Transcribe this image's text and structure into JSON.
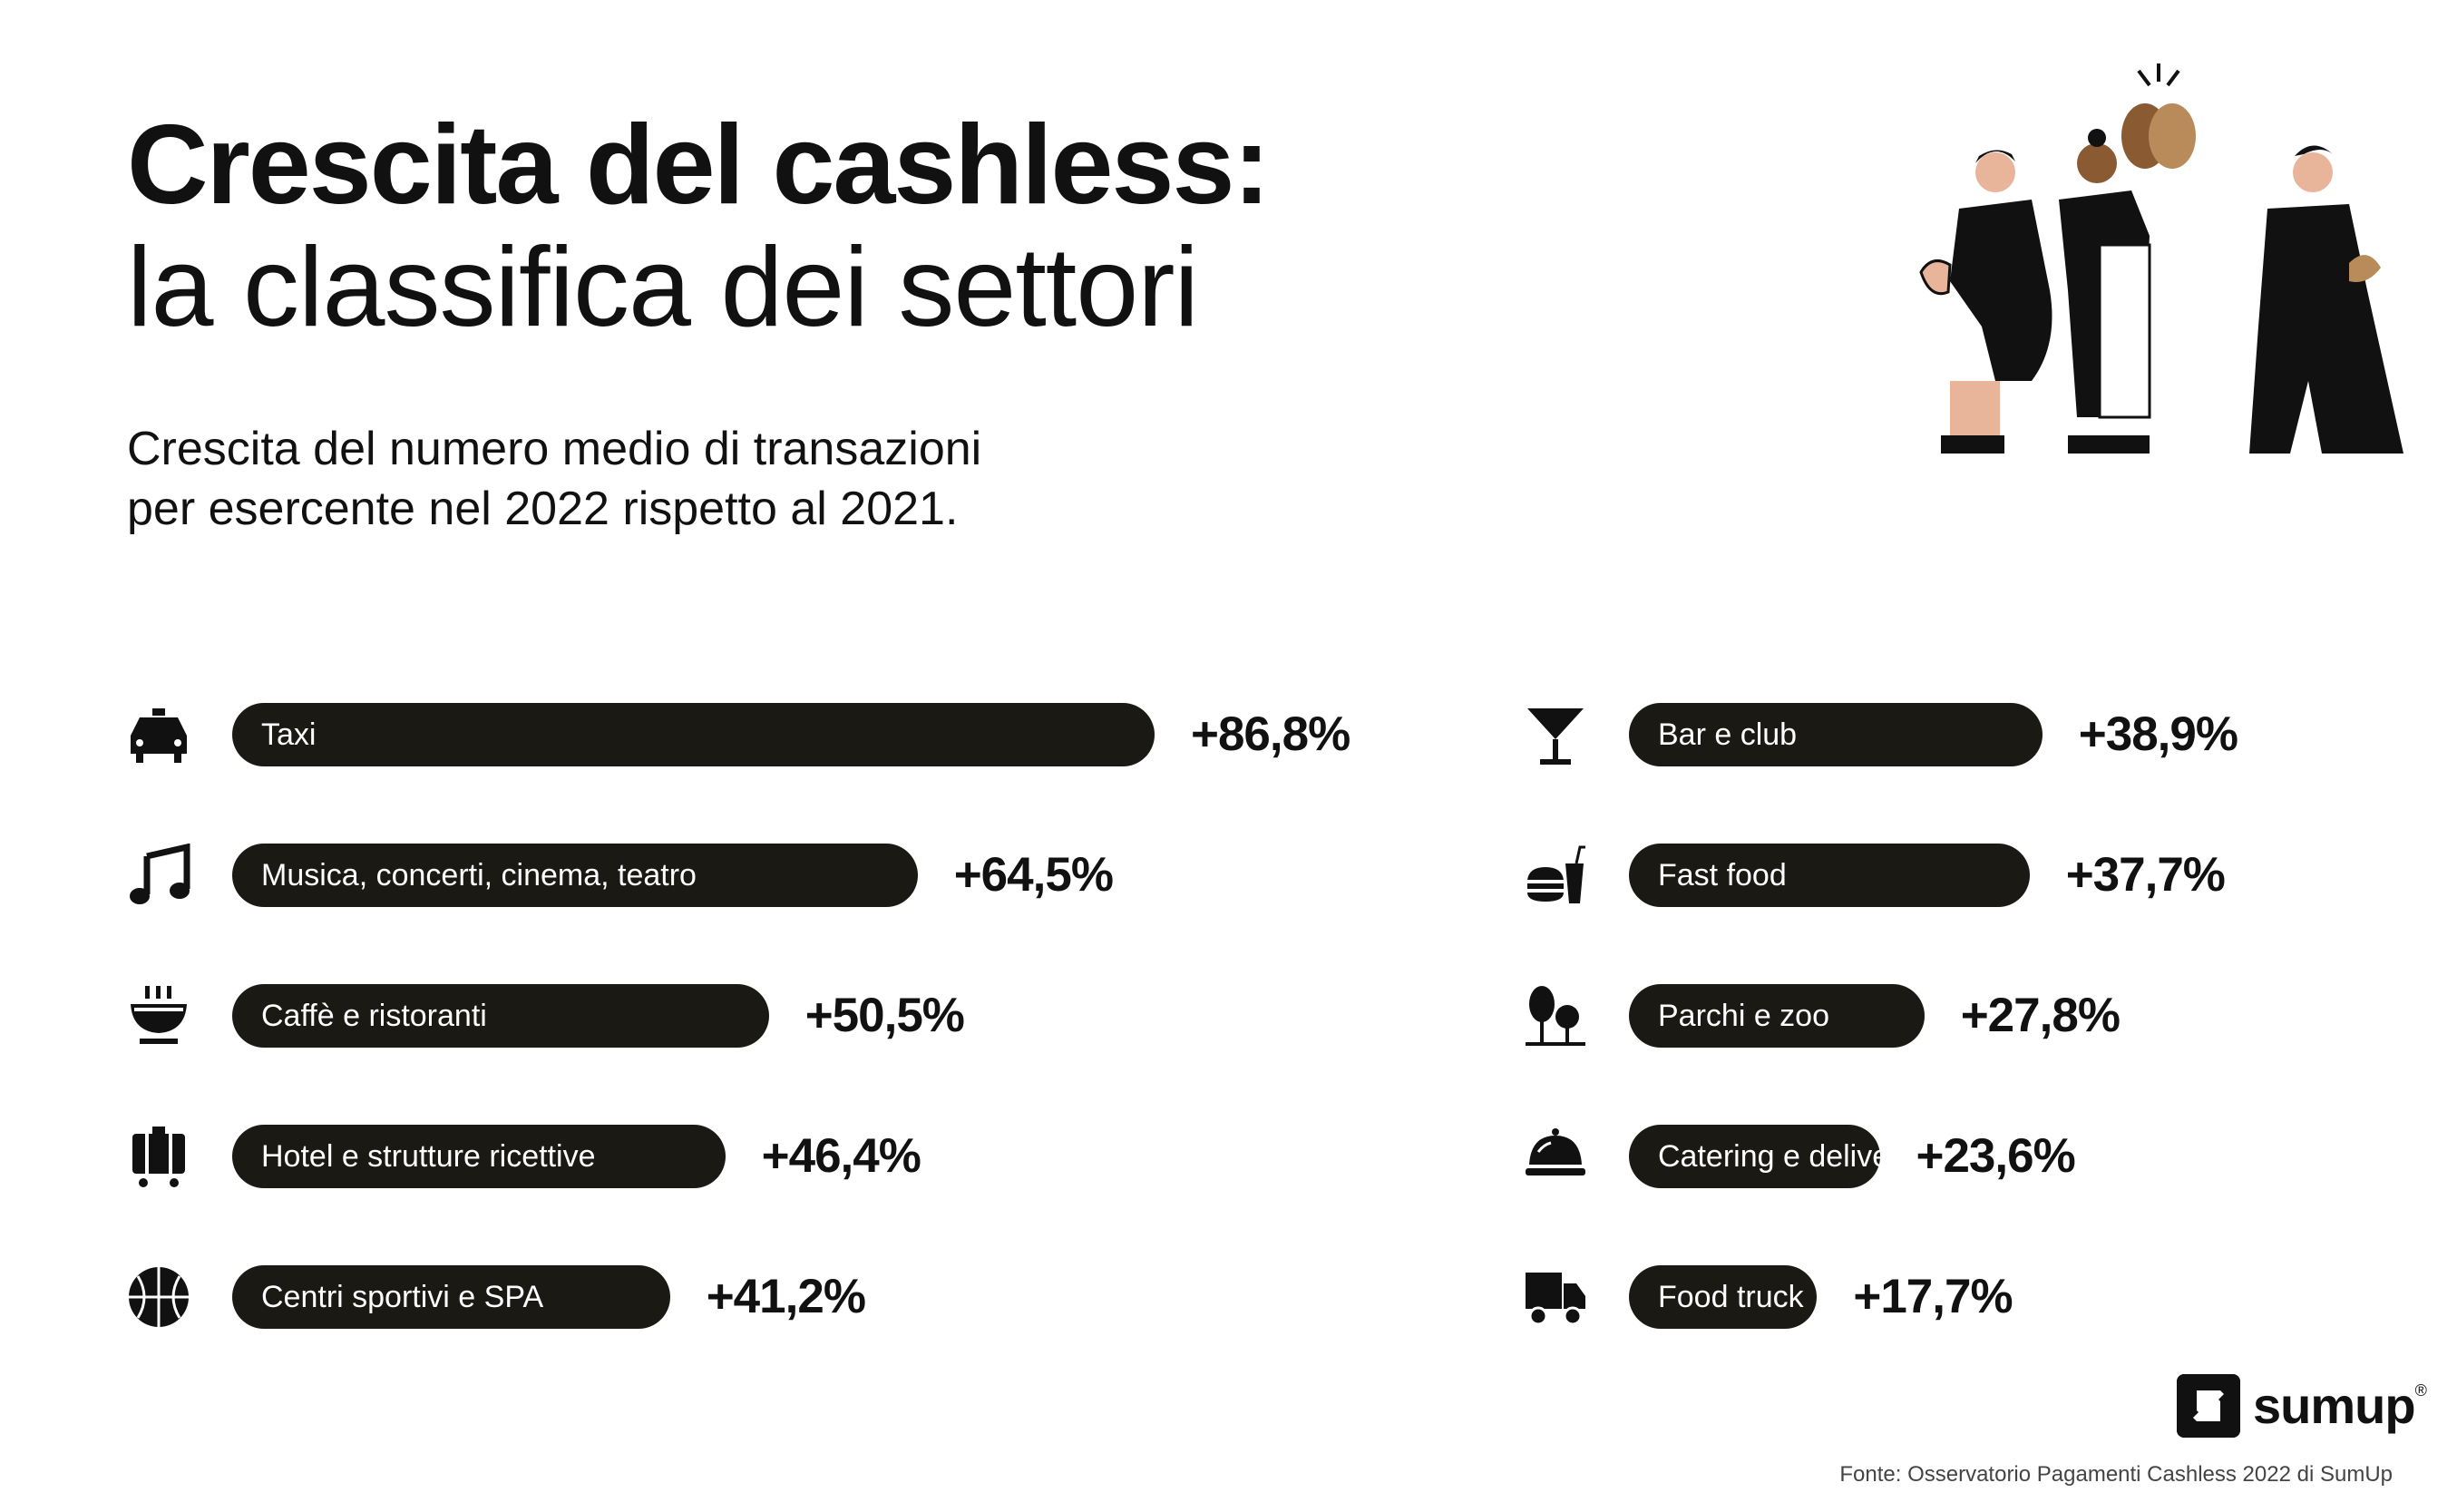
{
  "title": {
    "line1": "Crescita del cashless:",
    "line2": "la classifica dei settori"
  },
  "subtitle": {
    "line1": "Crescita del numero medio di transazioni",
    "line2": "per esercente nel 2022 rispetto al 2021."
  },
  "chart_data": {
    "type": "bar",
    "orientation": "horizontal",
    "unit": "%",
    "xlim": [
      0,
      100
    ],
    "categories": [
      "Taxi",
      "Musica, concerti, cinema, teatro",
      "Caffè e ristoranti",
      "Hotel e strutture ricettive",
      "Centri sportivi e SPA",
      "Bar e club",
      "Fast food",
      "Parchi e zoo",
      "Catering e delivery",
      "Food truck"
    ],
    "values": [
      86.8,
      64.5,
      50.5,
      46.4,
      41.2,
      38.9,
      37.7,
      27.8,
      23.6,
      17.7
    ],
    "labels": [
      "+86,8%",
      "+64,5%",
      "+50,5%",
      "+46,4%",
      "+41,2%",
      "+38,9%",
      "+37,7%",
      "+27,8%",
      "+23,6%",
      "+17,7%"
    ],
    "icons": [
      "taxi-icon",
      "music-note-icon",
      "coffee-bowl-icon",
      "luggage-icon",
      "basketball-icon",
      "cocktail-glass-icon",
      "fast-food-icon",
      "trees-icon",
      "cloche-icon",
      "truck-icon"
    ],
    "columns": [
      "left",
      "left",
      "left",
      "left",
      "left",
      "right",
      "right",
      "right",
      "right",
      "right"
    ],
    "title": "Crescita del numero medio di transazioni per esercente nel 2022 rispetto al 2021.",
    "bar_color": "#1b1914"
  },
  "brand": {
    "name": "sumup",
    "registered": "®"
  },
  "source": "Fonte: Osservatorio Pagamenti Cashless 2022 di SumUp",
  "colors": {
    "bar": "#1b1914",
    "text": "#111111",
    "skin_light": "#e8b49a",
    "skin_mid": "#b98a5a",
    "skin_dark": "#8a5a32"
  }
}
